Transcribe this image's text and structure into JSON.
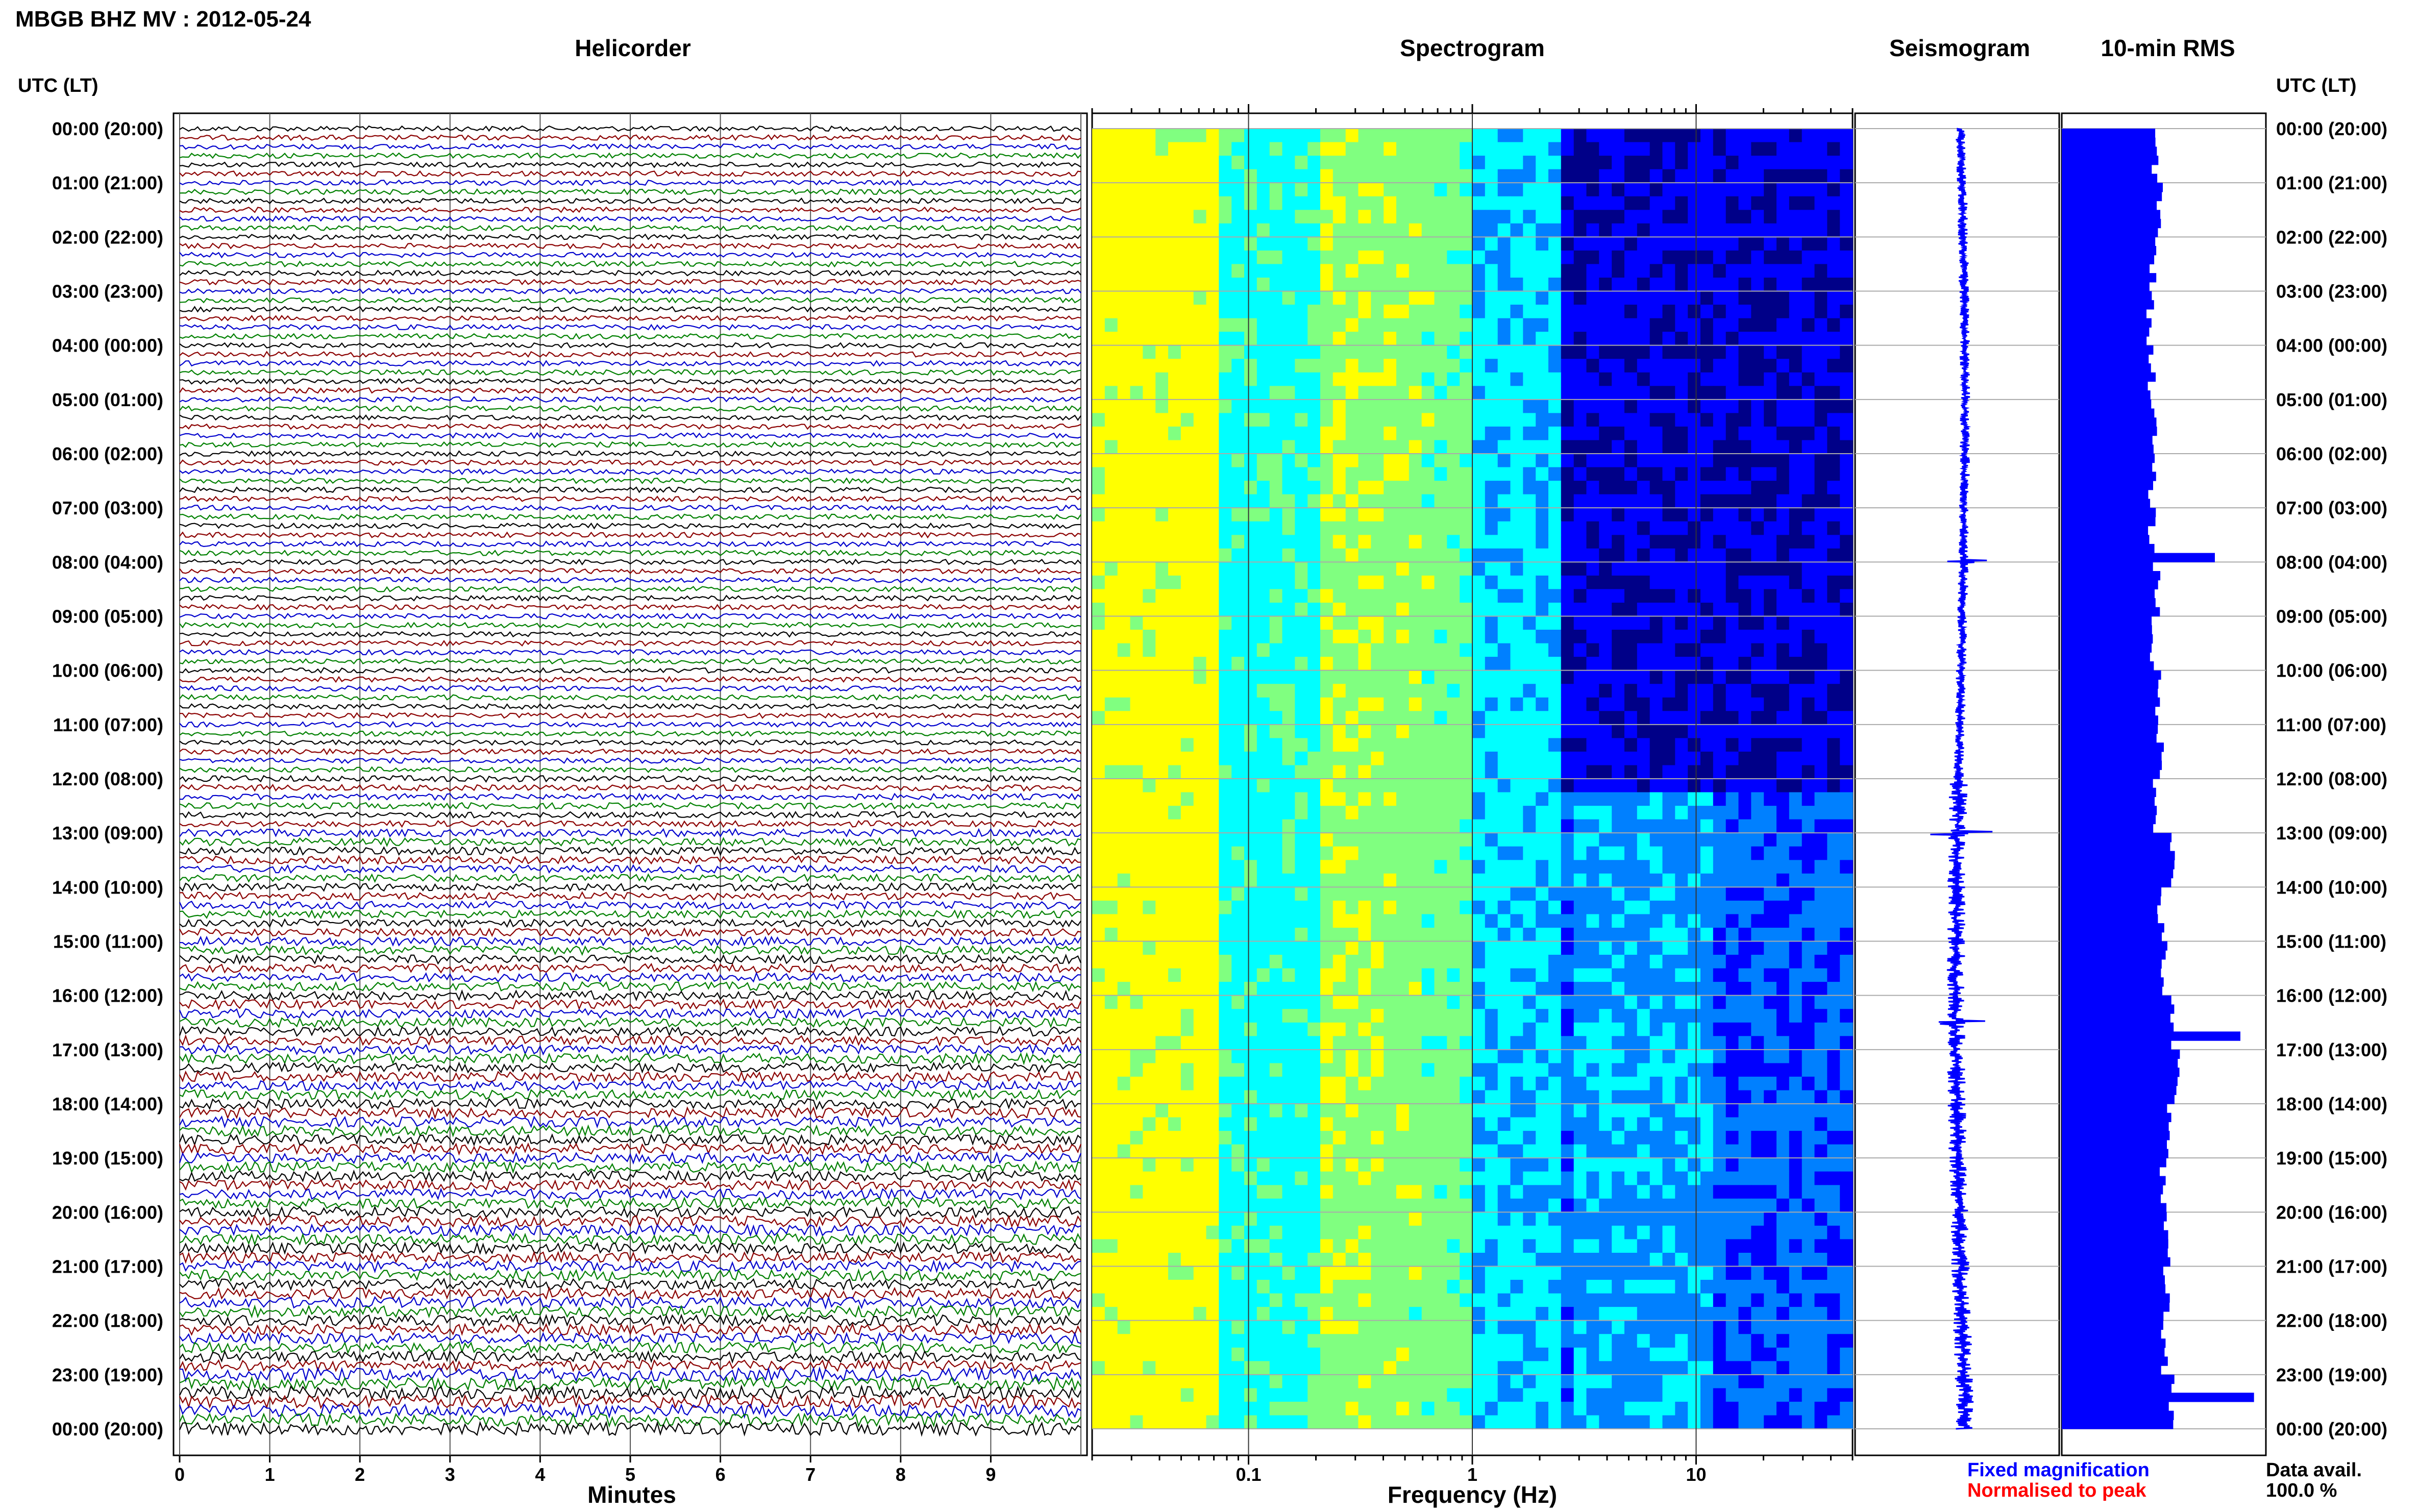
{
  "figure_title": "MBGB BHZ MV : 2012-05-24",
  "panels": {
    "helicorder": "Helicorder",
    "spectrogram": "Spectrogram",
    "seismogram": "Seismogram",
    "rms": "10-min RMS"
  },
  "axis_labels": {
    "left_header": "UTC (LT)",
    "right_header": "UTC (LT)",
    "minutes": "Minutes",
    "frequency": "Frequency (Hz)"
  },
  "legend": {
    "fixed": "Fixed magnification",
    "normalised": "Normalised to peak",
    "fixed_color": "#0000ff",
    "normalised_color": "#ff0000"
  },
  "data_availability": {
    "label": "Data avail.",
    "value": "100.0 %"
  },
  "colors": {
    "trace_cycle": [
      "#000000",
      "#8b0000",
      "#0000cd",
      "#008000"
    ],
    "seismogram": "#0000ff",
    "rms_bar": "#0000ff",
    "grid": "#aaaaaa"
  },
  "chart_data": [
    {
      "type": "line",
      "title": "Helicorder",
      "xlabel": "Minutes",
      "x_ticks": [
        "0",
        "1",
        "2",
        "3",
        "4",
        "5",
        "6",
        "7",
        "8",
        "9"
      ],
      "xlim": [
        0,
        10
      ],
      "traces_per_hour": 6,
      "hour_labels": [
        "00:00 (20:00)",
        "01:00 (21:00)",
        "02:00 (22:00)",
        "03:00 (23:00)",
        "04:00 (00:00)",
        "05:00 (01:00)",
        "06:00 (02:00)",
        "07:00 (03:00)",
        "08:00 (04:00)",
        "09:00 (05:00)",
        "10:00 (06:00)",
        "11:00 (07:00)",
        "12:00 (08:00)",
        "13:00 (09:00)",
        "14:00 (10:00)",
        "15:00 (11:00)",
        "16:00 (12:00)",
        "17:00 (13:00)",
        "18:00 (14:00)",
        "19:00 (15:00)",
        "20:00 (16:00)",
        "21:00 (17:00)",
        "22:00 (18:00)",
        "23:00 (19:00)",
        "00:00 (20:00)"
      ],
      "relative_amplitude_per_hour": [
        1.0,
        1.0,
        1.0,
        1.0,
        1.0,
        1.0,
        1.0,
        1.0,
        1.0,
        1.0,
        1.0,
        1.0,
        1.2,
        1.5,
        1.5,
        1.7,
        1.8,
        1.9,
        2.0,
        2.0,
        2.1,
        2.1,
        2.1,
        2.5
      ]
    },
    {
      "type": "heatmap",
      "title": "Spectrogram",
      "xlabel": "Frequency (Hz)",
      "x_scale": "log",
      "xlim": [
        0.02,
        50
      ],
      "x_tick_labels": [
        {
          "value": 0.1,
          "label": "0.1"
        },
        {
          "value": 1,
          "label": "1"
        },
        {
          "value": 10,
          "label": "10"
        }
      ],
      "colormap": [
        "#000088",
        "#0000ff",
        "#0080ff",
        "#00ffff",
        "#80ff80",
        "#ffff00",
        "#ff8000",
        "#ff0000"
      ]
    },
    {
      "type": "line",
      "title": "Seismogram",
      "note_peaks_hours": [
        8.0,
        13.0,
        16.5
      ]
    },
    {
      "type": "bar",
      "title": "10-min RMS",
      "orientation": "horizontal",
      "rms_per_hour": [
        5.5,
        5.8,
        5.4,
        5.2,
        5.3,
        5.4,
        5.3,
        5.3,
        5.6,
        5.4,
        5.6,
        5.8,
        5.6,
        6.5,
        5.8,
        6.0,
        6.4,
        6.8,
        6.2,
        6.0,
        6.2,
        6.2,
        6.0,
        6.4
      ],
      "spikes": [
        {
          "hour": 7.9,
          "value": 9.0
        },
        {
          "hour": 16.6,
          "value": 10.5
        },
        {
          "hour": 23.3,
          "value": 11.3
        }
      ],
      "xlim": [
        0,
        12
      ]
    }
  ]
}
